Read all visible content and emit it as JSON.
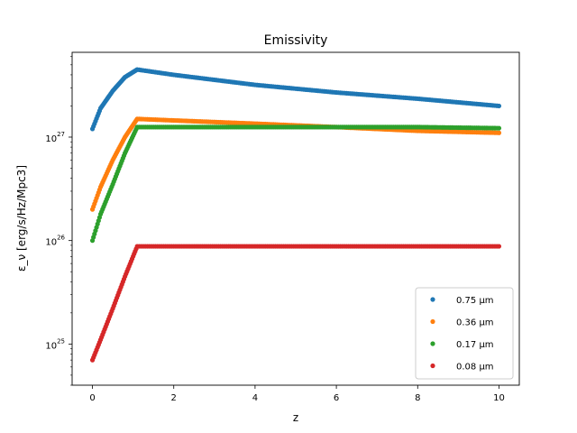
{
  "chart_data": {
    "type": "scatter",
    "title": "Emissivity",
    "xlabel": "z",
    "ylabel": "ε_ν [erg/s/Hz/Mpc3]",
    "xlim": [
      -0.5,
      10.5
    ],
    "ylim": [
      4e+24,
      6.6e+27
    ],
    "yscale": "log",
    "grid": false,
    "legend_position": "lower-right",
    "x_ticks": [
      0,
      2,
      4,
      6,
      8,
      10
    ],
    "x_tick_labels": [
      "0",
      "2",
      "4",
      "6",
      "8",
      "10"
    ],
    "y_ticks": [
      1e+25,
      1e+26,
      1e+27
    ],
    "y_tick_labels": [
      "10^25",
      "10^26",
      "10^27"
    ],
    "series": [
      {
        "name": "0.75 μm",
        "color": "#1f77b4",
        "peak_z": 1.1,
        "values_at": {
          "0": 1.2e+27,
          "0.2": 1.9e+27,
          "0.5": 2.8e+27,
          "0.8": 3.8e+27,
          "1.1": 4.5e+27,
          "2": 4e+27,
          "4": 3.2e+27,
          "6": 2.7e+27,
          "8": 2.35e+27,
          "10": 2e+27
        }
      },
      {
        "name": "0.36 μm",
        "color": "#ff7f0e",
        "peak_z": 1.1,
        "values_at": {
          "0": 2e+26,
          "0.2": 3.3e+26,
          "0.5": 6e+26,
          "0.8": 1e+27,
          "1.1": 1.5e+27,
          "2": 1.45e+27,
          "4": 1.35e+27,
          "6": 1.25e+27,
          "8": 1.15e+27,
          "10": 1.1e+27
        }
      },
      {
        "name": "0.17 μm",
        "color": "#2ca02c",
        "peak_z": 1.1,
        "values_at": {
          "0": 1e+26,
          "0.2": 1.8e+26,
          "0.5": 3.5e+26,
          "0.8": 7e+26,
          "1.1": 1.25e+27,
          "2": 1.25e+27,
          "4": 1.25e+27,
          "6": 1.25e+27,
          "8": 1.25e+27,
          "10": 1.22e+27
        }
      },
      {
        "name": "0.08 μm",
        "color": "#d62728",
        "peak_z": 1.1,
        "values_at": {
          "0": 7e+24,
          "0.2": 1.1e+25,
          "0.5": 2.2e+25,
          "0.8": 4.5e+25,
          "1.1": 8.8e+25,
          "2": 8.8e+25,
          "4": 8.8e+25,
          "6": 8.8e+25,
          "8": 8.8e+25,
          "10": 8.8e+25
        }
      }
    ]
  }
}
